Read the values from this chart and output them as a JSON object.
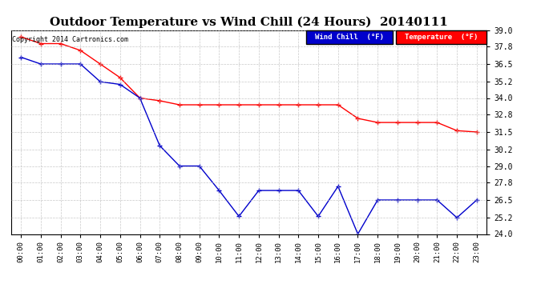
{
  "title": "Outdoor Temperature vs Wind Chill (24 Hours)  20140111",
  "copyright": "Copyright 2014 Cartronics.com",
  "x_labels": [
    "00:00",
    "01:00",
    "02:00",
    "03:00",
    "04:00",
    "05:00",
    "06:00",
    "07:00",
    "08:00",
    "09:00",
    "10:00",
    "11:00",
    "12:00",
    "13:00",
    "14:00",
    "15:00",
    "16:00",
    "17:00",
    "18:00",
    "19:00",
    "20:00",
    "21:00",
    "22:00",
    "23:00"
  ],
  "temperature": [
    38.5,
    38.0,
    38.0,
    37.5,
    36.5,
    35.5,
    34.0,
    33.8,
    33.5,
    33.5,
    33.5,
    33.5,
    33.5,
    33.5,
    33.5,
    33.5,
    33.5,
    32.5,
    32.2,
    32.2,
    32.2,
    32.2,
    31.6,
    31.5
  ],
  "wind_chill": [
    37.0,
    36.5,
    36.5,
    36.5,
    35.2,
    35.0,
    34.0,
    30.5,
    29.0,
    29.0,
    27.2,
    25.3,
    27.2,
    27.2,
    27.2,
    25.3,
    27.5,
    24.0,
    26.5,
    26.5,
    26.5,
    26.5,
    25.2,
    26.5
  ],
  "ylim": [
    24.0,
    39.0
  ],
  "ytick_vals": [
    24.0,
    25.2,
    26.5,
    27.8,
    29.0,
    30.2,
    31.5,
    32.8,
    34.0,
    35.2,
    36.5,
    37.8,
    39.0
  ],
  "ytick_labels": [
    "24.0",
    "25.2",
    "26.5",
    "27.8",
    "29.0",
    "30.2",
    "31.5",
    "32.8",
    "34.0",
    "35.2",
    "36.5",
    "37.8",
    "39.0"
  ],
  "temp_color": "#ff0000",
  "wind_color": "#0000cc",
  "background_color": "#ffffff",
  "grid_color": "#bbbbbb",
  "title_fontsize": 11,
  "legend_wind_label": "Wind Chill  (°F)",
  "legend_temp_label": "Temperature  (°F)"
}
